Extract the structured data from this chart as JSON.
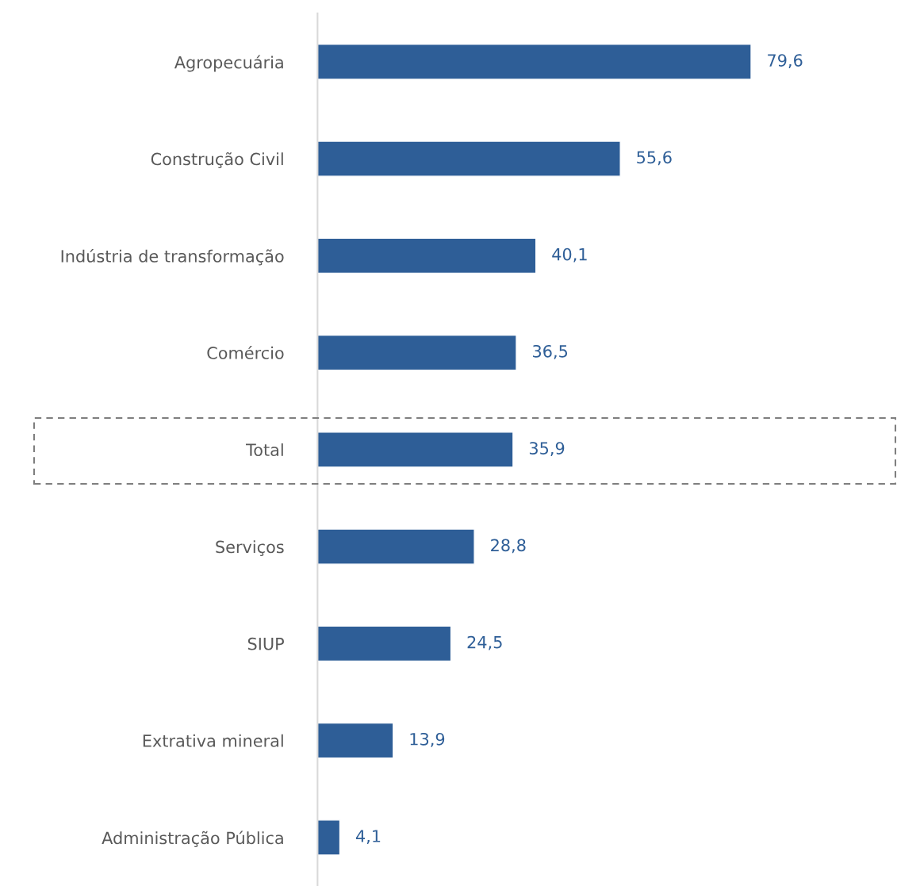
{
  "chart_data": {
    "type": "bar",
    "orientation": "horizontal",
    "categories": [
      "Agropecuária",
      "Construção Civil",
      "Indústria de transformação",
      "Comércio",
      "Total",
      "Serviços",
      "SIUP",
      "Extrativa mineral",
      "Administração Pública"
    ],
    "values": [
      79.6,
      55.6,
      40.1,
      36.5,
      35.9,
      28.8,
      24.5,
      13.9,
      4.1
    ],
    "value_labels": [
      "79,6",
      "55,6",
      "40,1",
      "36,5",
      "35,9",
      "28,8",
      "24,5",
      "13,9",
      "4,1"
    ],
    "color": "#2e5e97",
    "tick_labels": "y",
    "grid": false
  }
}
